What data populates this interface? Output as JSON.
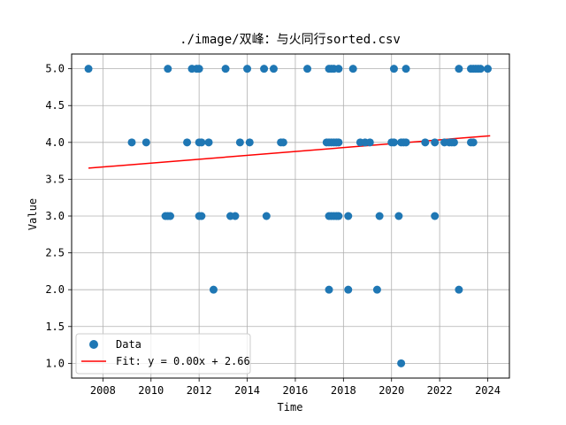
{
  "chart_data": {
    "type": "scatter",
    "title": "./image/双峰：与火同行sorted.csv",
    "xlabel": "Time",
    "ylabel": "Value",
    "xlim": [
      2006.7,
      2024.9
    ],
    "ylim": [
      0.8,
      5.2
    ],
    "xticks": [
      2008,
      2010,
      2012,
      2014,
      2016,
      2018,
      2020,
      2022,
      2024
    ],
    "yticks": [
      1.0,
      1.5,
      2.0,
      2.5,
      3.0,
      3.5,
      4.0,
      4.5,
      5.0
    ],
    "grid": true,
    "legend_position": "lower-left",
    "series": [
      {
        "name": "Data",
        "kind": "scatter",
        "color": "#1f77b4",
        "points": [
          [
            2007.4,
            5.0
          ],
          [
            2010.7,
            5.0
          ],
          [
            2011.7,
            5.0
          ],
          [
            2011.9,
            5.0
          ],
          [
            2012.0,
            5.0
          ],
          [
            2013.1,
            5.0
          ],
          [
            2014.0,
            5.0
          ],
          [
            2014.7,
            5.0
          ],
          [
            2015.1,
            5.0
          ],
          [
            2016.5,
            5.0
          ],
          [
            2017.4,
            5.0
          ],
          [
            2017.5,
            5.0
          ],
          [
            2017.6,
            5.0
          ],
          [
            2017.8,
            5.0
          ],
          [
            2018.4,
            5.0
          ],
          [
            2020.1,
            5.0
          ],
          [
            2020.6,
            5.0
          ],
          [
            2022.8,
            5.0
          ],
          [
            2023.3,
            5.0
          ],
          [
            2023.4,
            5.0
          ],
          [
            2023.5,
            5.0
          ],
          [
            2023.6,
            5.0
          ],
          [
            2023.7,
            5.0
          ],
          [
            2024.0,
            5.0
          ],
          [
            2009.2,
            4.0
          ],
          [
            2009.8,
            4.0
          ],
          [
            2011.5,
            4.0
          ],
          [
            2012.0,
            4.0
          ],
          [
            2012.1,
            4.0
          ],
          [
            2012.4,
            4.0
          ],
          [
            2013.7,
            4.0
          ],
          [
            2014.1,
            4.0
          ],
          [
            2015.4,
            4.0
          ],
          [
            2015.5,
            4.0
          ],
          [
            2017.3,
            4.0
          ],
          [
            2017.4,
            4.0
          ],
          [
            2017.5,
            4.0
          ],
          [
            2017.6,
            4.0
          ],
          [
            2017.7,
            4.0
          ],
          [
            2017.8,
            4.0
          ],
          [
            2018.7,
            4.0
          ],
          [
            2018.9,
            4.0
          ],
          [
            2019.1,
            4.0
          ],
          [
            2020.0,
            4.0
          ],
          [
            2020.1,
            4.0
          ],
          [
            2020.4,
            4.0
          ],
          [
            2020.5,
            4.0
          ],
          [
            2020.6,
            4.0
          ],
          [
            2021.4,
            4.0
          ],
          [
            2021.8,
            4.0
          ],
          [
            2022.2,
            4.0
          ],
          [
            2022.4,
            4.0
          ],
          [
            2022.5,
            4.0
          ],
          [
            2022.6,
            4.0
          ],
          [
            2023.3,
            4.0
          ],
          [
            2023.4,
            4.0
          ],
          [
            2010.6,
            3.0
          ],
          [
            2010.7,
            3.0
          ],
          [
            2010.8,
            3.0
          ],
          [
            2012.0,
            3.0
          ],
          [
            2012.1,
            3.0
          ],
          [
            2013.3,
            3.0
          ],
          [
            2013.5,
            3.0
          ],
          [
            2014.8,
            3.0
          ],
          [
            2017.4,
            3.0
          ],
          [
            2017.5,
            3.0
          ],
          [
            2017.6,
            3.0
          ],
          [
            2017.7,
            3.0
          ],
          [
            2017.8,
            3.0
          ],
          [
            2018.2,
            3.0
          ],
          [
            2019.5,
            3.0
          ],
          [
            2020.3,
            3.0
          ],
          [
            2021.8,
            3.0
          ],
          [
            2012.6,
            2.0
          ],
          [
            2017.4,
            2.0
          ],
          [
            2018.2,
            2.0
          ],
          [
            2019.4,
            2.0
          ],
          [
            2022.8,
            2.0
          ],
          [
            2020.4,
            1.0
          ]
        ]
      },
      {
        "name": "Fit: y = 0.00x + 2.66",
        "kind": "line",
        "color": "#ff0000",
        "points": [
          [
            2007.4,
            3.65
          ],
          [
            2024.1,
            4.09
          ]
        ]
      }
    ]
  }
}
